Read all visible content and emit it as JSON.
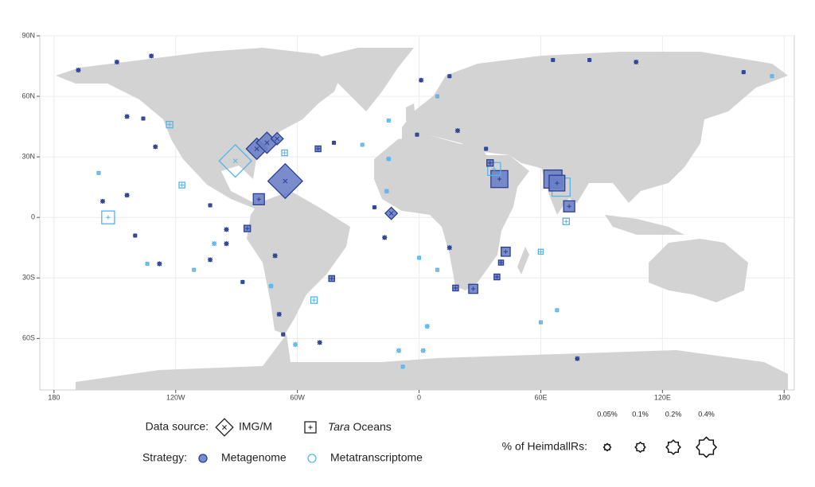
{
  "map": {
    "x_ticks": [
      {
        "value": -180,
        "label": "180"
      },
      {
        "value": -120,
        "label": "120W"
      },
      {
        "value": -60,
        "label": "60W"
      },
      0,
      {
        "value": 60,
        "label": "60E"
      },
      {
        "value": 120,
        "label": "120E"
      },
      {
        "value": 180,
        "label": "180"
      }
    ],
    "y_ticks": [
      {
        "value": 90,
        "label": "90N"
      },
      {
        "value": 60,
        "label": "60N"
      },
      {
        "value": 30,
        "label": "30N"
      },
      0,
      {
        "value": -30,
        "label": "30S"
      },
      {
        "value": -60,
        "label": "60S"
      }
    ],
    "xlim": [
      -187,
      185
    ],
    "ylim": [
      -85.5,
      90
    ],
    "sources": [
      {
        "label": "IMG/M",
        "shape": "diamond"
      },
      {
        "label_italic": "Tara",
        "label": "Oceans",
        "shape": "square"
      }
    ],
    "strategies": [
      {
        "label": "Metagenome",
        "color": "#2b3f91",
        "fill": "#6b7fc6"
      },
      {
        "label": "Metatranscriptome",
        "color": "#55b3ec",
        "fill": "none"
      }
    ],
    "source_title": "Data source:",
    "strategy_title": "Strategy:",
    "size_title": "% of HeimdallRs:",
    "size_keys": [
      {
        "value": 0.05,
        "label": "0.05%"
      },
      {
        "value": 0.1,
        "label": "0.1%"
      },
      {
        "value": 0.2,
        "label": "0.2%"
      },
      {
        "value": 0.4,
        "label": "0.4%"
      }
    ],
    "points": [
      {
        "lon": -66,
        "lat": 18,
        "pct": 0.8,
        "source": 0,
        "strategy": 0
      },
      {
        "lon": -90.6,
        "lat": 28,
        "pct": 0.7,
        "source": 0,
        "strategy": 1
      },
      {
        "lon": -80,
        "lat": 34,
        "pct": 0.3,
        "source": 0,
        "strategy": 0
      },
      {
        "lon": -75,
        "lat": 37,
        "pct": 0.3,
        "source": 0,
        "strategy": 0
      },
      {
        "lon": -70,
        "lat": 39,
        "pct": 0.1,
        "source": 0,
        "strategy": 0
      },
      {
        "lon": -13.7,
        "lat": 2,
        "pct": 0.1,
        "source": 0,
        "strategy": 0
      },
      {
        "lon": -123,
        "lat": 46,
        "pct": 0.05,
        "source": 1,
        "strategy": 1
      },
      {
        "lon": 39.6,
        "lat": 19,
        "pct": 0.35,
        "source": 1,
        "strategy": 0
      },
      {
        "lon": 37,
        "lat": 24,
        "pct": 0.2,
        "source": 1,
        "strategy": 1
      },
      {
        "lon": 35,
        "lat": 27,
        "pct": 0.05,
        "source": 1,
        "strategy": 0
      },
      {
        "lon": 66,
        "lat": 19,
        "pct": 0.4,
        "source": 1,
        "strategy": 0
      },
      {
        "lon": 70,
        "lat": 15,
        "pct": 0.4,
        "source": 1,
        "strategy": 1
      },
      {
        "lon": 68,
        "lat": 17,
        "pct": 0.3,
        "source": 1,
        "strategy": 0
      },
      {
        "lon": 74,
        "lat": 5.5,
        "pct": 0.15,
        "source": 1,
        "strategy": 0
      },
      {
        "lon": 72.5,
        "lat": -2,
        "pct": 0.05,
        "source": 1,
        "strategy": 1
      },
      {
        "lon": -153.3,
        "lat": 0,
        "pct": 0.2,
        "source": 1,
        "strategy": 1
      },
      {
        "lon": -79,
        "lat": 9,
        "pct": 0.15,
        "source": 1,
        "strategy": 0
      },
      {
        "lon": -84.7,
        "lat": -5.5,
        "pct": 0.05,
        "source": 1,
        "strategy": 0
      },
      {
        "lon": 42.7,
        "lat": -17,
        "pct": 0.1,
        "source": 1,
        "strategy": 0
      },
      {
        "lon": 26.7,
        "lat": -35.4,
        "pct": 0.1,
        "source": 1,
        "strategy": 0
      },
      {
        "lon": 18,
        "lat": -35,
        "pct": 0.04,
        "source": 1,
        "strategy": 0
      },
      {
        "lon": 38.4,
        "lat": -29.5,
        "pct": 0.04,
        "source": 1,
        "strategy": 0
      },
      {
        "lon": 40.4,
        "lat": -22.4,
        "pct": 0.03,
        "source": 1,
        "strategy": 0
      },
      {
        "lon": -49.8,
        "lat": 34,
        "pct": 0.04,
        "source": 1,
        "strategy": 0
      },
      {
        "lon": -43.1,
        "lat": -30.3,
        "pct": 0.04,
        "source": 1,
        "strategy": 0
      },
      {
        "lon": -51.8,
        "lat": -41,
        "pct": 0.05,
        "source": 1,
        "strategy": 1
      },
      {
        "lon": 60,
        "lat": -17,
        "pct": 0.03,
        "source": 1,
        "strategy": 1
      },
      {
        "lon": -66.3,
        "lat": 32,
        "pct": 0.04,
        "source": 1,
        "strategy": 1
      },
      {
        "lon": -116.9,
        "lat": 16,
        "pct": 0.04,
        "source": 1,
        "strategy": 1
      },
      {
        "lon": -168,
        "lat": 73,
        "pct": 0.01,
        "source": 0,
        "strategy": 0
      },
      {
        "lon": -149,
        "lat": 77,
        "pct": 0.01,
        "source": 0,
        "strategy": 0
      },
      {
        "lon": -132,
        "lat": 80,
        "pct": 0.01,
        "source": 0,
        "strategy": 0
      },
      {
        "lon": -144,
        "lat": 50,
        "pct": 0.01,
        "source": 0,
        "strategy": 0
      },
      {
        "lon": -136,
        "lat": 49,
        "pct": 0.01,
        "source": 1,
        "strategy": 0
      },
      {
        "lon": -130,
        "lat": 35,
        "pct": 0.01,
        "source": 0,
        "strategy": 0
      },
      {
        "lon": -158,
        "lat": 22,
        "pct": 0.01,
        "source": 1,
        "strategy": 1
      },
      {
        "lon": -156,
        "lat": 8,
        "pct": 0.01,
        "source": 0,
        "strategy": 0
      },
      {
        "lon": -144,
        "lat": 11,
        "pct": 0.01,
        "source": 0,
        "strategy": 0
      },
      {
        "lon": -140,
        "lat": -9,
        "pct": 0.01,
        "source": 1,
        "strategy": 0
      },
      {
        "lon": -134,
        "lat": -23,
        "pct": 0.01,
        "source": 1,
        "strategy": 1
      },
      {
        "lon": -128,
        "lat": -23,
        "pct": 0.01,
        "source": 0,
        "strategy": 0
      },
      {
        "lon": -111,
        "lat": -26,
        "pct": 0.01,
        "source": 1,
        "strategy": 1
      },
      {
        "lon": -103,
        "lat": -21,
        "pct": 0.01,
        "source": 0,
        "strategy": 0
      },
      {
        "lon": -101,
        "lat": -13,
        "pct": 0.01,
        "source": 0,
        "strategy": 1
      },
      {
        "lon": -95,
        "lat": -13,
        "pct": 0.01,
        "source": 0,
        "strategy": 0
      },
      {
        "lon": -95,
        "lat": -6,
        "pct": 0.01,
        "source": 0,
        "strategy": 0
      },
      {
        "lon": -103,
        "lat": 6,
        "pct": 0.01,
        "source": 1,
        "strategy": 0
      },
      {
        "lon": -87,
        "lat": -32,
        "pct": 0.01,
        "source": 1,
        "strategy": 0
      },
      {
        "lon": -71,
        "lat": -19,
        "pct": 0.01,
        "source": 0,
        "strategy": 0
      },
      {
        "lon": -73,
        "lat": -34,
        "pct": 0.01,
        "source": 0,
        "strategy": 1
      },
      {
        "lon": -69,
        "lat": -48,
        "pct": 0.01,
        "source": 0,
        "strategy": 0
      },
      {
        "lon": -67,
        "lat": -58,
        "pct": 0.01,
        "source": 1,
        "strategy": 0
      },
      {
        "lon": -61,
        "lat": -63,
        "pct": 0.01,
        "source": 0,
        "strategy": 1
      },
      {
        "lon": -49,
        "lat": -62,
        "pct": 0.01,
        "source": 0,
        "strategy": 0
      },
      {
        "lon": -42,
        "lat": 37,
        "pct": 0.01,
        "source": 1,
        "strategy": 0
      },
      {
        "lon": -28,
        "lat": 36,
        "pct": 0.01,
        "source": 1,
        "strategy": 1
      },
      {
        "lon": -15,
        "lat": 48,
        "pct": 0.01,
        "source": 1,
        "strategy": 1
      },
      {
        "lon": -15,
        "lat": 29,
        "pct": 0.01,
        "source": 0,
        "strategy": 1
      },
      {
        "lon": -16,
        "lat": 13,
        "pct": 0.01,
        "source": 0,
        "strategy": 1
      },
      {
        "lon": -22,
        "lat": 5,
        "pct": 0.01,
        "source": 1,
        "strategy": 0
      },
      {
        "lon": -17,
        "lat": -10,
        "pct": 0.01,
        "source": 0,
        "strategy": 0
      },
      {
        "lon": 0,
        "lat": -20,
        "pct": 0.01,
        "source": 1,
        "strategy": 1
      },
      {
        "lon": 4,
        "lat": -54,
        "pct": 0.01,
        "source": 0,
        "strategy": 1
      },
      {
        "lon": 2,
        "lat": -66,
        "pct": 0.01,
        "source": 0,
        "strategy": 1
      },
      {
        "lon": -10,
        "lat": -66,
        "pct": 0.01,
        "source": 0,
        "strategy": 1
      },
      {
        "lon": -8,
        "lat": -74,
        "pct": 0.01,
        "source": 1,
        "strategy": 1
      },
      {
        "lon": 9,
        "lat": -26,
        "pct": 0.01,
        "source": 1,
        "strategy": 1
      },
      {
        "lon": 15,
        "lat": -15,
        "pct": 0.01,
        "source": 0,
        "strategy": 0
      },
      {
        "lon": 60,
        "lat": -52,
        "pct": 0.01,
        "source": 1,
        "strategy": 1
      },
      {
        "lon": 68,
        "lat": -46,
        "pct": 0.01,
        "source": 1,
        "strategy": 1
      },
      {
        "lon": 78,
        "lat": -70,
        "pct": 0.01,
        "source": 0,
        "strategy": 0
      },
      {
        "lon": 15,
        "lat": 70,
        "pct": 0.01,
        "source": 1,
        "strategy": 0
      },
      {
        "lon": 1,
        "lat": 68,
        "pct": 0.01,
        "source": 0,
        "strategy": 0
      },
      {
        "lon": 9,
        "lat": 60,
        "pct": 0.01,
        "source": 1,
        "strategy": 1
      },
      {
        "lon": 66,
        "lat": 78,
        "pct": 0.01,
        "source": 1,
        "strategy": 0
      },
      {
        "lon": 84,
        "lat": 78,
        "pct": 0.01,
        "source": 1,
        "strategy": 0
      },
      {
        "lon": 107,
        "lat": 77,
        "pct": 0.01,
        "source": 0,
        "strategy": 0
      },
      {
        "lon": 160,
        "lat": 72,
        "pct": 0.01,
        "source": 1,
        "strategy": 0
      },
      {
        "lon": 174,
        "lat": 70,
        "pct": 0.01,
        "source": 1,
        "strategy": 1
      },
      {
        "lon": -1,
        "lat": 41,
        "pct": 0.01,
        "source": 1,
        "strategy": 0
      },
      {
        "lon": 19,
        "lat": 43,
        "pct": 0.01,
        "source": 0,
        "strategy": 0
      },
      {
        "lon": 33,
        "lat": 34,
        "pct": 0.01,
        "source": 1,
        "strategy": 0
      }
    ]
  }
}
